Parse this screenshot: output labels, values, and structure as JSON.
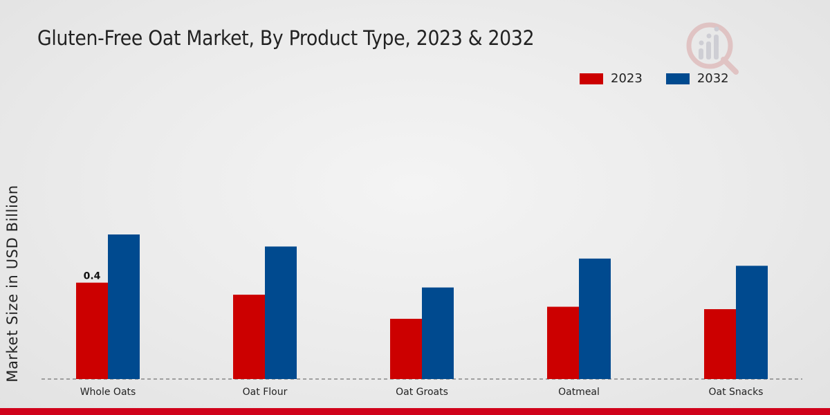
{
  "chart_data": {
    "type": "bar",
    "title": "Gluten-Free Oat Market, By Product Type, 2023 & 2032",
    "xlabel": "",
    "ylabel": "Market Size in USD Billion",
    "categories": [
      "Whole Oats",
      "Oat Flour",
      "Oat Groats",
      "Oatmeal",
      "Oat Snacks"
    ],
    "series": [
      {
        "name": "2023",
        "color": "#cc0000",
        "values": [
          0.4,
          0.35,
          0.25,
          0.3,
          0.29
        ]
      },
      {
        "name": "2032",
        "color": "#004a8f",
        "values": [
          0.6,
          0.55,
          0.38,
          0.5,
          0.47
        ]
      }
    ],
    "data_labels": [
      {
        "series": 0,
        "category": 0,
        "text": "0.4"
      }
    ],
    "ylim": [
      0,
      1.2
    ],
    "grid": false,
    "legend_position": "top-right"
  }
}
